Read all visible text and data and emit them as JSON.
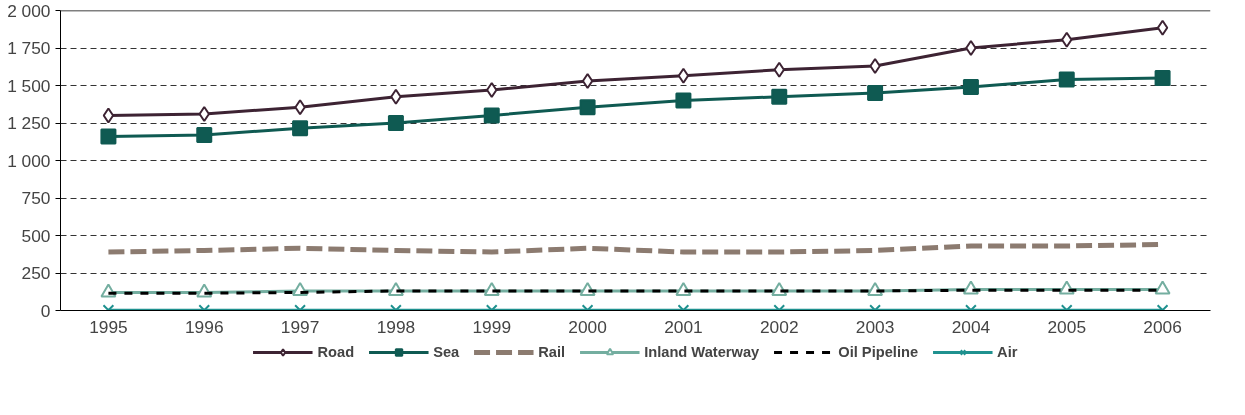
{
  "chart_data": {
    "type": "line",
    "categories": [
      "1995",
      "1996",
      "1997",
      "1998",
      "1999",
      "2000",
      "2001",
      "2002",
      "2003",
      "2004",
      "2005",
      "2006"
    ],
    "ylim": [
      0,
      2000
    ],
    "yticks": [
      0,
      250,
      500,
      750,
      {
        "value": 1000,
        "label": "1 000"
      },
      {
        "value": 1250,
        "label": "1 250"
      },
      {
        "value": 1500,
        "label": "1 500"
      },
      {
        "value": 1750,
        "label": "1 750"
      },
      {
        "value": 2000,
        "label": "2 000"
      }
    ],
    "grid": "y",
    "legend": "bottom",
    "series": [
      {
        "name": "Road",
        "color": "#3d2333",
        "marker": "diamond",
        "line_style": "solid",
        "values": [
          1300,
          1310,
          1355,
          1425,
          1470,
          1530,
          1565,
          1605,
          1630,
          1750,
          1805,
          1885
        ]
      },
      {
        "name": "Sea",
        "color": "#0f5a52",
        "marker": "square",
        "line_style": "solid",
        "values": [
          1160,
          1170,
          1215,
          1250,
          1300,
          1355,
          1400,
          1425,
          1450,
          1490,
          1540,
          1550
        ]
      },
      {
        "name": "Rail",
        "color": "#8c7b70",
        "marker": "none",
        "line_style": "dashed",
        "values": [
          390,
          400,
          415,
          400,
          390,
          415,
          390,
          390,
          400,
          430,
          430,
          440
        ]
      },
      {
        "name": "Inland Waterway",
        "color": "#74aea0",
        "marker": "triangle",
        "line_style": "solid",
        "values": [
          120,
          120,
          130,
          130,
          130,
          130,
          130,
          130,
          130,
          140,
          140,
          140
        ]
      },
      {
        "name": "Oil Pipeline",
        "color": "#000000",
        "marker": "none",
        "line_style": "dotted",
        "values": [
          115,
          115,
          120,
          130,
          130,
          130,
          130,
          130,
          130,
          135,
          135,
          135
        ]
      },
      {
        "name": "Air",
        "color": "#1f918f",
        "marker": "cross",
        "line_style": "solid",
        "values": [
          2,
          2,
          2,
          2,
          2,
          2,
          2,
          2,
          2,
          2,
          2,
          2
        ]
      }
    ]
  }
}
